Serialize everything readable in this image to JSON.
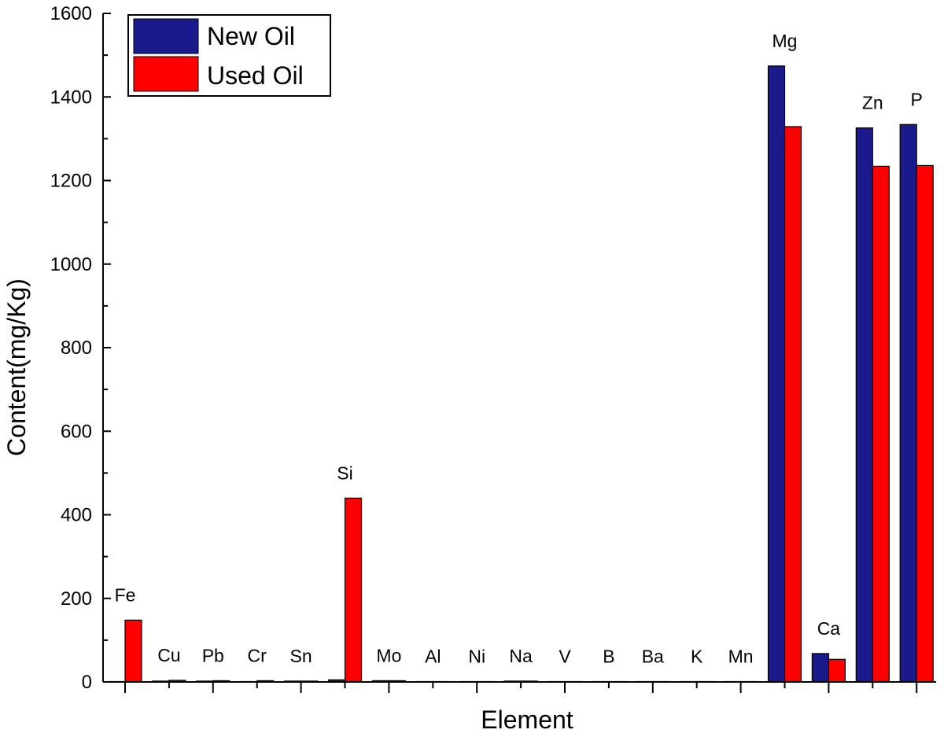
{
  "chart_data": {
    "type": "bar",
    "xlabel": "Element",
    "ylabel": "Content(mg/Kg)",
    "ylim": [
      0,
      1600
    ],
    "yticks": [
      0,
      200,
      400,
      600,
      800,
      1000,
      1200,
      1400,
      1600
    ],
    "categories": [
      "Fe",
      "Cu",
      "Pb",
      "Cr",
      "Sn",
      "Si",
      "Mo",
      "Al",
      "Ni",
      "Na",
      "V",
      "B",
      "Ba",
      "K",
      "Mn",
      "Mg",
      "Ca",
      "Zn",
      "P"
    ],
    "series": [
      {
        "name": "New Oil",
        "color": "#1a1a8c",
        "values": [
          1,
          2,
          2,
          1,
          2,
          5,
          3,
          1,
          1,
          2,
          1,
          1,
          1,
          1,
          1,
          1474,
          68,
          1326,
          1334
        ]
      },
      {
        "name": "Used Oil",
        "color": "#ff0000",
        "values": [
          148,
          4,
          3,
          3,
          2,
          440,
          3,
          1,
          1,
          2,
          1,
          1,
          1,
          1,
          1,
          1329,
          54,
          1234,
          1236
        ]
      }
    ],
    "grid": false,
    "legend_position": "top-left"
  }
}
